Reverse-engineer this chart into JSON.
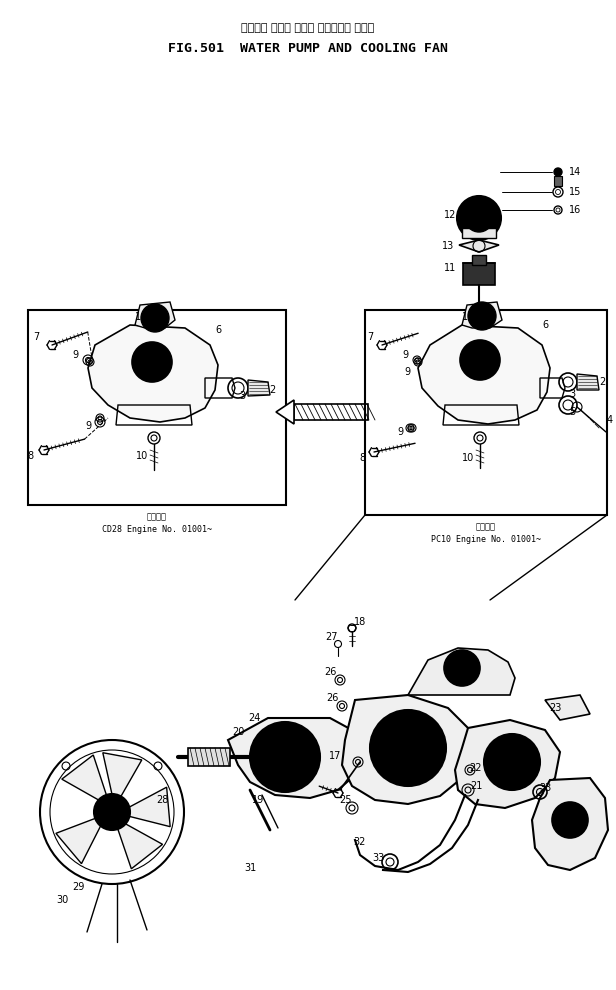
{
  "title_japanese": "ウォータ ポンプ および クーリング ファン",
  "title_english": "FIG.501  WATER PUMP AND COOLING FAN",
  "bg_color": "#ffffff",
  "line_color": "#000000",
  "label_left": "CD28 Engine No. 01001~",
  "label_right": "PC10 Engine No. 01001~",
  "label_left_header": "適用機種",
  "label_right_header": "適用機種",
  "fig_width": 6.16,
  "fig_height": 9.9,
  "dpi": 100
}
